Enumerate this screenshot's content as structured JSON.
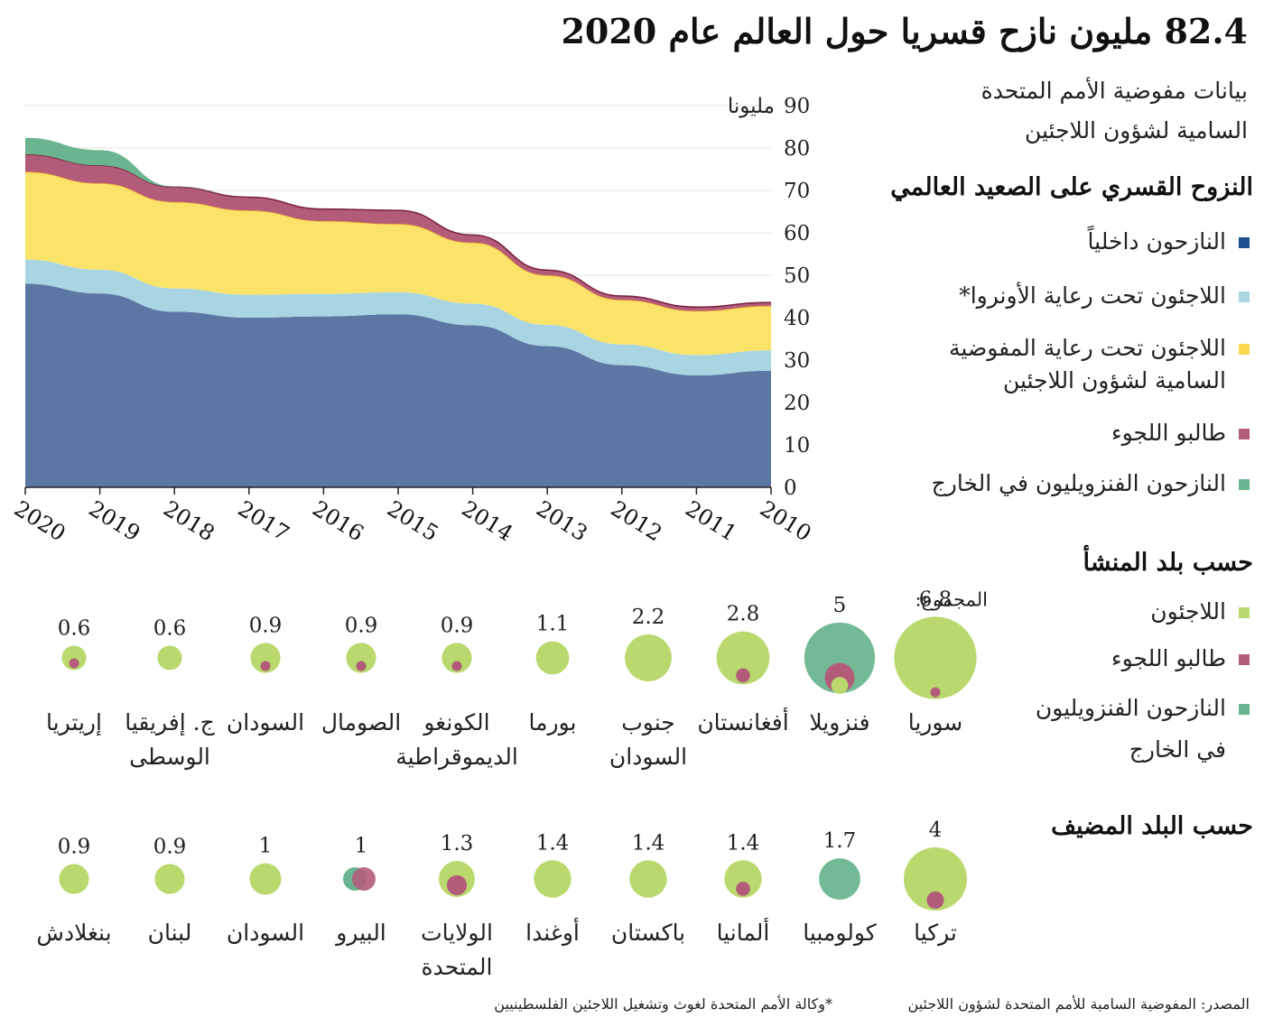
{
  "title": "82.4 مليون نازح قسريا حول العالم عام 2020",
  "subtitle_line1": "بيانات مفوضية الأمم المتحدة",
  "subtitle_line2": "السامية لشؤون اللاجئين",
  "global_section": {
    "heading": "النزوح القسري على الصعيد العالمي",
    "legend": [
      {
        "label": "النازحون داخلياً",
        "color": "#1f4e8c"
      },
      {
        "label": "اللاجئون تحت رعاية الأونروا*",
        "color": "#a9d5e3"
      },
      {
        "label_line1": "اللاجئون تحت رعاية المفوضية",
        "label_line2": "السامية لشؤون اللاجئين",
        "color": "#f9d94e"
      },
      {
        "label": "طالبو اللجوء",
        "color": "#b35c7a"
      },
      {
        "label": "النازحون الفنزويليون في الخارج",
        "color": "#6ab58f"
      }
    ]
  },
  "chart_data": [
    {
      "type": "area",
      "stacked": true,
      "title": "النزوح القسري على الصعيد العالمي",
      "x": [
        2020,
        2019,
        2018,
        2017,
        2016,
        2015,
        2014,
        2013,
        2012,
        2011,
        2010
      ],
      "x_direction": "descending-left-to-right",
      "ylim": [
        0,
        90
      ],
      "yticks": [
        0,
        10,
        20,
        30,
        40,
        50,
        60,
        70,
        80,
        90
      ],
      "y_unit_label": "مليونا",
      "grid": true,
      "series": [
        {
          "name": "النازحون داخلياً",
          "color": "#5b77a3",
          "values": [
            48.0,
            45.7,
            41.4,
            40.0,
            40.3,
            40.8,
            38.2,
            33.3,
            28.8,
            26.4,
            27.5
          ]
        },
        {
          "name": "اللاجئون تحت رعاية الأونروا*",
          "color": "#a9d5e3",
          "values": [
            5.7,
            5.6,
            5.5,
            5.4,
            5.3,
            5.2,
            5.1,
            5.0,
            4.9,
            4.8,
            4.8
          ]
        },
        {
          "name": "اللاجئون تحت رعاية المفوضية السامية لشؤون اللاجئين",
          "color": "#fbe36a",
          "values": [
            20.7,
            20.4,
            20.4,
            19.9,
            17.2,
            16.1,
            14.4,
            11.7,
            10.5,
            10.4,
            10.5
          ]
        },
        {
          "name": "طالبو اللجوء",
          "color": "#b35c7a",
          "values": [
            4.1,
            4.2,
            3.5,
            3.1,
            2.8,
            3.2,
            1.8,
            1.2,
            0.9,
            0.9,
            0.8
          ]
        },
        {
          "name": "النازحون الفنزويليون في الخارج",
          "color": "#6ab58f",
          "values": [
            3.9,
            3.6,
            0.1,
            0,
            0,
            0,
            0,
            0,
            0,
            0,
            0
          ]
        }
      ]
    },
    {
      "type": "bubble",
      "title": "حسب بلد المنشأ",
      "total_label": "المجموع:",
      "categories": [
        "سوريا",
        "فنزويلا",
        "أفغانستان",
        "جنوب السودان",
        "بورما",
        "الكونغو الديموقراطية",
        "الصومال",
        "السودان",
        "ج. إفريقيا الوسطى",
        "إريتريا"
      ],
      "totals": [
        "6.8",
        "5",
        "2.8",
        "2.2",
        "1.1",
        "0.9",
        "0.9",
        "0.9",
        "0.6",
        "0.6"
      ],
      "series": [
        {
          "name": "اللاجئون",
          "color": "#b9d96e",
          "values": [
            6.7,
            0.2,
            2.6,
            2.2,
            1.1,
            0.8,
            0.8,
            0.8,
            0.6,
            0.5
          ]
        },
        {
          "name": "طالبو اللجوء",
          "color": "#b35c7a",
          "values": [
            0.1,
            0.8,
            0.2,
            0,
            0,
            0.1,
            0.1,
            0.1,
            0,
            0.1
          ]
        },
        {
          "name": "النازحون الفنزويليون في الخارج",
          "color": "#6ab58f",
          "values": [
            0,
            4.0,
            0,
            0,
            0,
            0,
            0,
            0,
            0,
            0
          ]
        }
      ]
    },
    {
      "type": "bubble",
      "title": "حسب البلد المضيف",
      "categories": [
        "تركيا",
        "كولومبيا",
        "ألمانيا",
        "باكستان",
        "أوغندا",
        "الولايات المتحدة",
        "البيرو",
        "السودان",
        "لبنان",
        "بنغلادش"
      ],
      "totals": [
        "4",
        "1.7",
        "1.4",
        "1.4",
        "1.4",
        "1.3",
        "1",
        "1",
        "0.9",
        "0.9"
      ],
      "series": [
        {
          "name": "اللاجئون",
          "color": "#b9d96e",
          "values": [
            3.7,
            0,
            1.2,
            1.4,
            1.4,
            0.9,
            0,
            1.0,
            0.9,
            0.9
          ]
        },
        {
          "name": "طالبو اللجوء",
          "color": "#b35c7a",
          "values": [
            0.3,
            0,
            0.2,
            0,
            0,
            0.4,
            0.5,
            0,
            0,
            0
          ]
        },
        {
          "name": "النازحون الفنزويليون في الخارج",
          "color": "#6ab58f",
          "values": [
            0,
            1.7,
            0,
            0,
            0,
            0,
            0.5,
            0,
            0,
            0
          ]
        }
      ]
    }
  ],
  "origin_section": {
    "heading": "حسب بلد المنشأ",
    "legend": [
      {
        "label": "اللاجئون",
        "color": "#b9d96e"
      },
      {
        "label": "طالبو اللجوء",
        "color": "#b35c7a"
      },
      {
        "label_line1": "النازحون الفنزويليون",
        "label_line2": "في الخارج",
        "color": "#6ab58f"
      }
    ],
    "country_lines": [
      [
        "سوريا",
        ""
      ],
      [
        "فنزويلا",
        ""
      ],
      [
        "أفغانستان",
        ""
      ],
      [
        "جنوب",
        "السودان"
      ],
      [
        "بورما",
        ""
      ],
      [
        "الكونغو",
        "الديموقراطية"
      ],
      [
        "الصومال",
        ""
      ],
      [
        "السودان",
        ""
      ],
      [
        "ج. إفريقيا",
        "الوسطى"
      ],
      [
        "إريتريا",
        ""
      ]
    ]
  },
  "host_section": {
    "heading": "حسب البلد المضيف",
    "country_lines": [
      [
        "تركيا",
        ""
      ],
      [
        "كولومبيا",
        ""
      ],
      [
        "ألمانيا",
        ""
      ],
      [
        "باكستان",
        ""
      ],
      [
        "أوغندا",
        ""
      ],
      [
        "الولايات",
        "المتحدة"
      ],
      [
        "البيرو",
        ""
      ],
      [
        "السودان",
        ""
      ],
      [
        "لبنان",
        ""
      ],
      [
        "بنغلادش",
        ""
      ]
    ]
  },
  "footer": {
    "source": "المصدر: المفوضية السامية للأمم المتحدة لشؤون اللاجئين",
    "note": "*وكالة الأمم المتحدة لغوث وتشغيل اللاجئين الفلسطينيين"
  }
}
